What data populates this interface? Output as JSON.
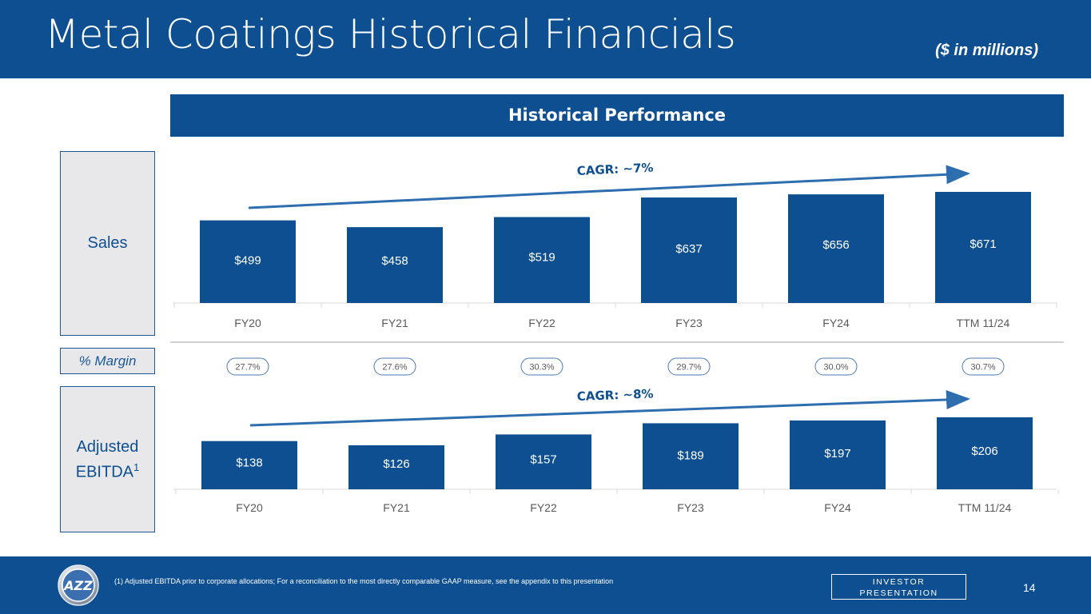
{
  "header": {
    "title": "Metal Coatings Historical Financials",
    "subtitle": "($ in millions)"
  },
  "banner": {
    "title": "Historical Performance"
  },
  "side_labels": {
    "sales": "Sales",
    "margin": "% Margin",
    "ebitda_line1": "Adjusted",
    "ebitda_line2": "EBITDA",
    "ebitda_sup": "1"
  },
  "footer": {
    "footnote": "(1) Adjusted EBITDA prior to corporate allocations; For a reconciliation to the most directly comparable GAAP measure, see the appendix to this presentation",
    "badge_line1": "INVESTOR",
    "badge_line2": "PRESENTATION",
    "page_number": "14",
    "logo_text": "AZZ"
  },
  "colors": {
    "brand": "#0d4f91",
    "bar": "#0d4f91",
    "arrow": "#2e6eaf",
    "grid": "#d9d9d9",
    "tick": "#595959",
    "margin_border": "#4a7ab5"
  },
  "chart_data": [
    {
      "type": "bar",
      "title": "Sales",
      "categories": [
        "FY20",
        "FY21",
        "FY22",
        "FY23",
        "FY24",
        "TTM 11/24"
      ],
      "values": [
        499,
        458,
        519,
        637,
        656,
        671
      ],
      "labels": [
        "$499",
        "$458",
        "$519",
        "$637",
        "$656",
        "$671"
      ],
      "ylim": [
        0,
        671
      ],
      "annotation": "CAGR: ~7%"
    },
    {
      "type": "bar",
      "title": "Adjusted EBITDA",
      "categories": [
        "FY20",
        "FY21",
        "FY22",
        "FY23",
        "FY24",
        "TTM 11/24"
      ],
      "values": [
        138,
        126,
        157,
        189,
        197,
        206
      ],
      "labels": [
        "$138",
        "$126",
        "$157",
        "$189",
        "$197",
        "$206"
      ],
      "ylim": [
        0,
        206
      ],
      "annotation": "CAGR: ~8%"
    }
  ],
  "margins": [
    "27.7%",
    "27.6%",
    "30.3%",
    "29.7%",
    "30.0%",
    "30.7%"
  ]
}
